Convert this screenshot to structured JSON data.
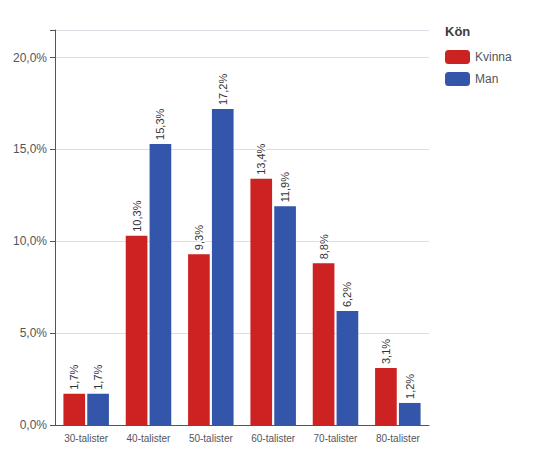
{
  "chart_data": {
    "type": "bar",
    "categories": [
      "30-talister",
      "40-talister",
      "50-talister",
      "60-talister",
      "70-talister",
      "80-talister"
    ],
    "series": [
      {
        "name": "Kvinna",
        "color": "#CC2222",
        "values": [
          1.7,
          10.3,
          9.3,
          13.4,
          8.8,
          3.1
        ],
        "value_labels": [
          "1,7%",
          "10,3%",
          "9,3%",
          "13,4%",
          "8,8%",
          "3,1%"
        ]
      },
      {
        "name": "Man",
        "color": "#3355AA",
        "values": [
          1.7,
          15.3,
          17.2,
          11.9,
          6.2,
          1.2
        ],
        "value_labels": [
          "1,7%",
          "15,3%",
          "17,2%",
          "11,9%",
          "6,2%",
          "1,2%"
        ]
      }
    ],
    "legend_title": "Kön",
    "legend": "upper right",
    "ylim": [
      0,
      21.5
    ],
    "yticks": [
      {
        "value": 0,
        "label": "0,0%"
      },
      {
        "value": 5,
        "label": "5,0%"
      },
      {
        "value": 10,
        "label": "10,0%"
      },
      {
        "value": 15,
        "label": "15,0%"
      },
      {
        "value": 20,
        "label": "20,0%"
      }
    ],
    "grid": true,
    "data_labels": true
  }
}
